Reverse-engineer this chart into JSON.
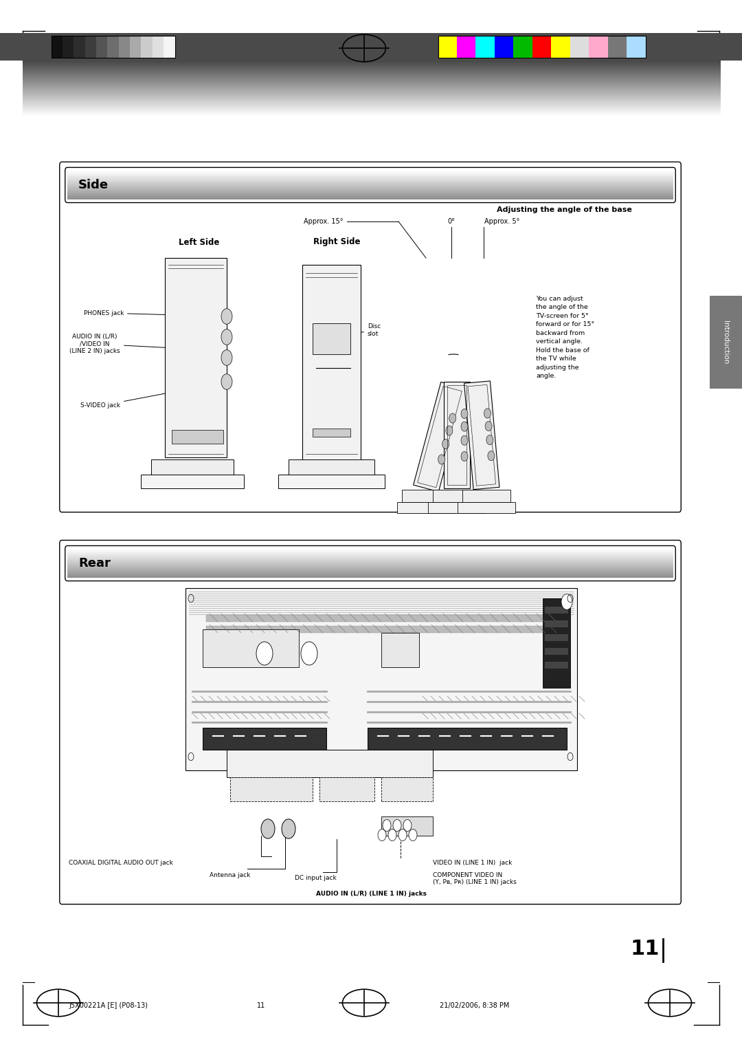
{
  "page_width": 10.8,
  "page_height": 15.28,
  "bg_color": "#ffffff",
  "grayscale_colors": [
    "#111111",
    "#1e1e1e",
    "#2d2d2d",
    "#3d3d3d",
    "#555555",
    "#6e6e6e",
    "#888888",
    "#aaaaaa",
    "#cccccc",
    "#e0e0e0",
    "#f5f5f5"
  ],
  "color_bars": [
    "#ffff00",
    "#ff00ff",
    "#00ffff",
    "#0000ff",
    "#00bb00",
    "#ff0000",
    "#ffff00",
    "#dddddd",
    "#ffaacc",
    "#777777",
    "#aaddff"
  ],
  "side_title": "Side",
  "rear_title": "Rear",
  "introduction_text": "Introduction",
  "page_num": "11",
  "footer_left": "J5X00221A [E] (P08-13)",
  "footer_center": "11",
  "footer_right": "21/02/2006, 8:38 PM",
  "side_adjust_title": "Adjusting the angle of the base",
  "side_left_label": "Left Side",
  "side_right_label": "Right Side",
  "approx15": "Approx. 15°",
  "approx0": "0°",
  "approx5": "Approx. 5°",
  "phones_jack": "PHONES jack",
  "audio_in": "AUDIO IN (L/R)\n/VIDEO IN\n(LINE 2 IN) jacks",
  "svideo_jack": "S-VIDEO jack",
  "disc_slot": "Disc\nslot",
  "adjust_text": "You can adjust\nthe angle of the\nTV-screen for 5°\nforward or for 15°\nbackward from\nvertical angle.\nHold the base of\nthe TV while\nadjusting the\nangle.",
  "coaxial_label": "COAXIAL DIGITAL AUDIO OUT jack",
  "antenna_label": "Antenna jack",
  "dc_input_label": "DC input jack",
  "video_in_label": "VIDEO IN (LINE 1 IN)  jack",
  "component_label": "COMPONENT VIDEO IN\n(Y, Pʙ, Pʀ) (LINE 1 IN) jacks",
  "audio_in_rear": "AUDIO IN (L/R) (LINE 1 IN) jacks"
}
